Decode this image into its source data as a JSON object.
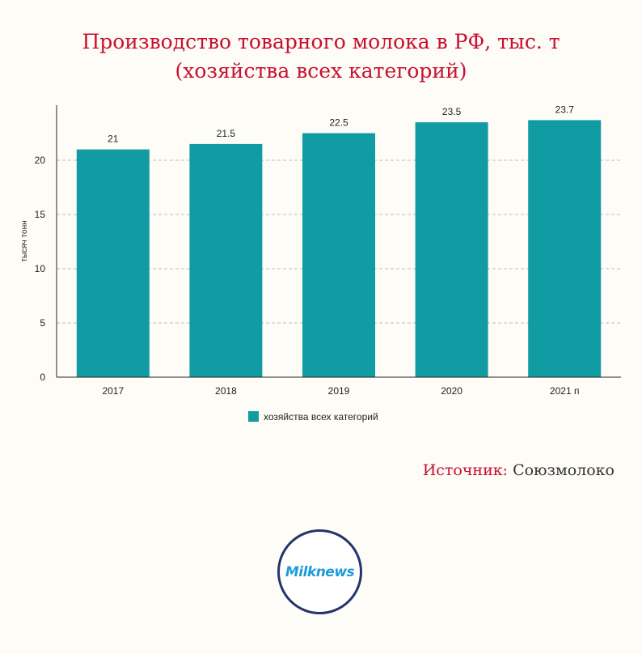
{
  "title": {
    "line1": "Производство товарного молока в РФ, тыс. т",
    "line2": "(хозяйства всех категорий)"
  },
  "source": {
    "label": "Источник:",
    "value": "Союзмолоко"
  },
  "logo": {
    "text": "Milknews"
  },
  "colors": {
    "bar": "#119ca3",
    "title": "#c8102e",
    "grid": "#bbbbbb"
  },
  "chart_data": {
    "type": "bar",
    "categories": [
      "2017",
      "2018",
      "2019",
      "2020",
      "2021 п"
    ],
    "series": [
      {
        "name": "хозяйства всех категорий",
        "values": [
          21,
          21.5,
          22.5,
          23.5,
          23.7
        ]
      }
    ],
    "data_labels": [
      "21",
      "21.5",
      "22.5",
      "23.5",
      "23.7"
    ],
    "ylabel": "тысяч тонн",
    "xlabel": "",
    "ylim": [
      0,
      25
    ],
    "yticks": [
      0,
      5,
      10,
      15,
      20
    ],
    "grid": true,
    "legend": "bottom-center"
  }
}
